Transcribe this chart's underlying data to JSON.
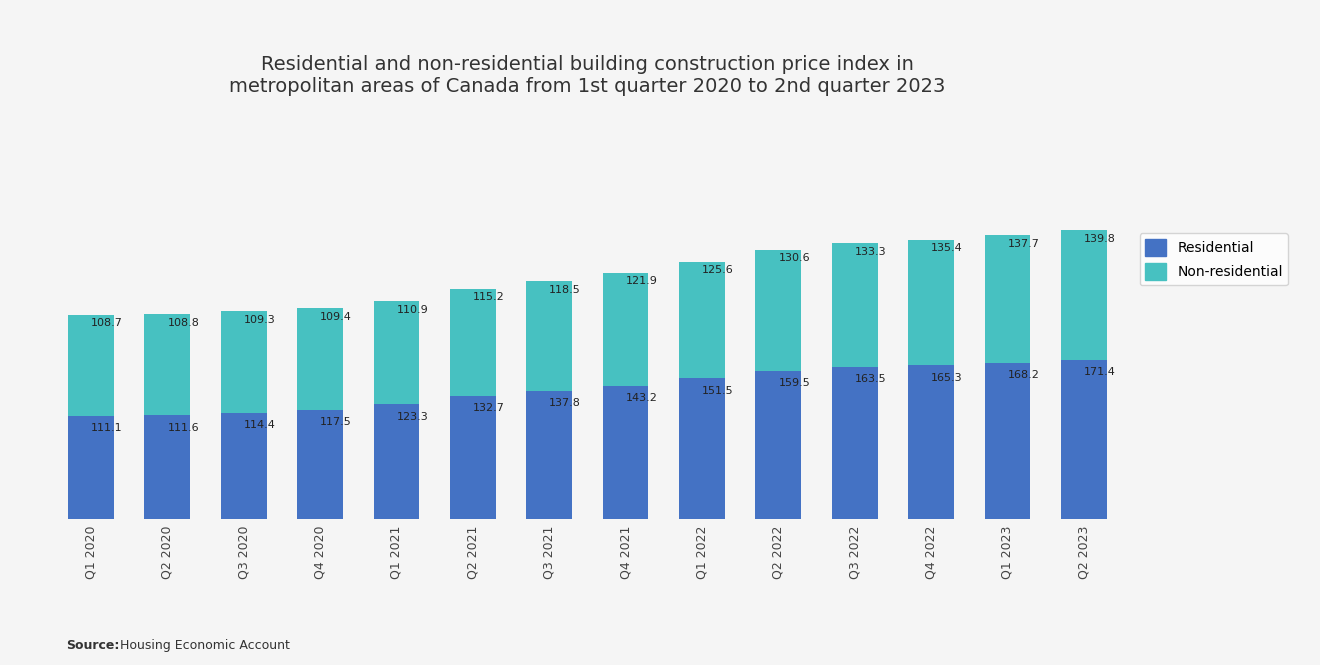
{
  "title": "Residential and non-residential building construction price index in\nmetropolitan areas of Canada from 1st quarter 2020 to 2nd quarter 2023",
  "categories": [
    "Q1 2020",
    "Q2 2020",
    "Q3 2020",
    "Q4 2020",
    "Q1 2021",
    "Q2 2021",
    "Q3 2021",
    "Q4 2021",
    "Q1 2022",
    "Q2 2022",
    "Q3 2022",
    "Q4 2022",
    "Q1 2023",
    "Q2 2023"
  ],
  "residential": [
    111.1,
    111.6,
    114.4,
    117.5,
    123.3,
    132.7,
    137.8,
    143.2,
    151.5,
    159.5,
    163.5,
    165.3,
    168.2,
    171.4
  ],
  "non_residential": [
    108.7,
    108.8,
    109.3,
    109.4,
    110.9,
    115.2,
    118.5,
    121.9,
    125.6,
    130.6,
    133.3,
    135.4,
    137.7,
    139.8
  ],
  "residential_color": "#4472C4",
  "non_residential_color": "#47C1C1",
  "background_color": "#f5f5f5",
  "title_fontsize": 14,
  "label_fontsize": 8.0,
  "source_bold": "Source:",
  "source_normal": "  Housing Economic Account",
  "legend_labels": [
    "Residential",
    "Non-residential"
  ],
  "ylim_max": 430,
  "bar_width": 0.6
}
